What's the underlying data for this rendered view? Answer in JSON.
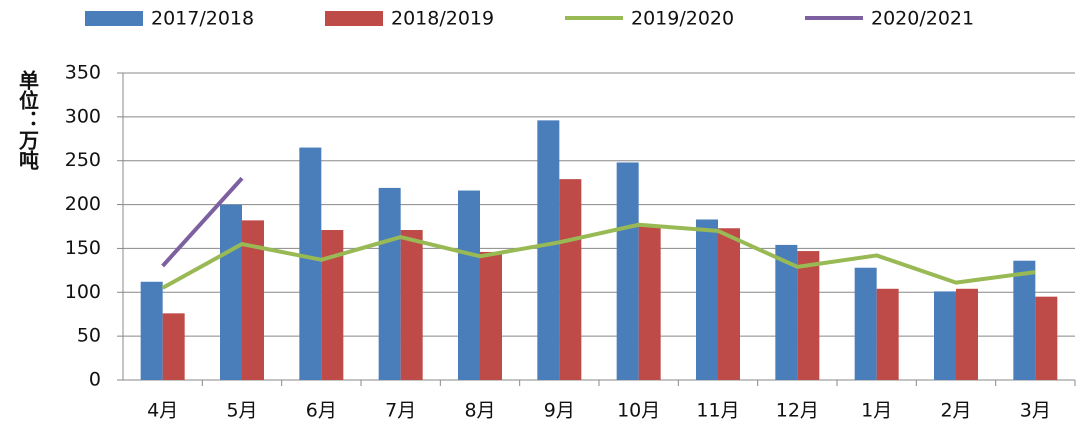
{
  "chart_data": {
    "type": "bar",
    "y_label": "单位：万吨",
    "categories": [
      "4月",
      "5月",
      "6月",
      "7月",
      "8月",
      "9月",
      "10月",
      "11月",
      "12月",
      "1月",
      "2月",
      "3月"
    ],
    "series": [
      {
        "name": "2017/2018",
        "type": "bar",
        "color": "#4a7ebb",
        "values": [
          112,
          200,
          265,
          219,
          216,
          296,
          248,
          183,
          154,
          128,
          101,
          136
        ]
      },
      {
        "name": "2018/2019",
        "type": "bar",
        "color": "#be4b48",
        "values": [
          76,
          182,
          171,
          171,
          146,
          229,
          175,
          173,
          147,
          104,
          104,
          95
        ]
      },
      {
        "name": "2019/2020",
        "type": "line",
        "color": "#98b954",
        "values": [
          105,
          155,
          137,
          163,
          141,
          157,
          177,
          170,
          129,
          142,
          111,
          123
        ]
      },
      {
        "name": "2020/2021",
        "type": "line",
        "color": "#7d60a0",
        "values": [
          130,
          230,
          null,
          null,
          null,
          null,
          null,
          null,
          null,
          null,
          null,
          null
        ]
      }
    ],
    "ylim": [
      0,
      350
    ],
    "yticks": [
      0,
      50,
      100,
      150,
      200,
      250,
      300,
      350
    ],
    "grid": true
  }
}
